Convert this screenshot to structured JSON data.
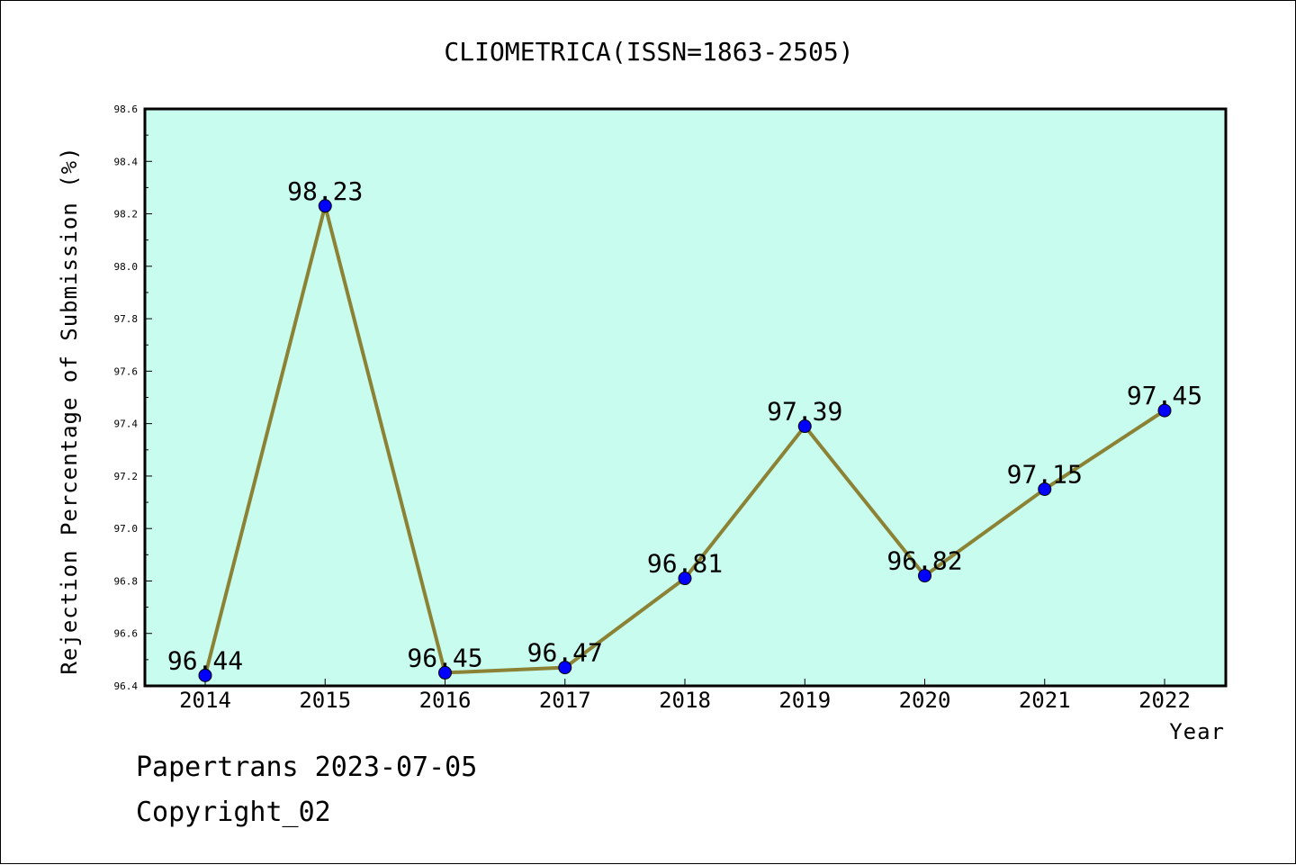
{
  "chart_data": {
    "type": "line",
    "title": "CLIOMETRICA(ISSN=1863-2505)",
    "xlabel": "Year",
    "ylabel": "Rejection Percentage of Submission (%)",
    "categories": [
      "2014",
      "2015",
      "2016",
      "2017",
      "2018",
      "2019",
      "2020",
      "2021",
      "2022"
    ],
    "series": [
      {
        "values": [
          96.44,
          98.23,
          96.45,
          96.47,
          96.81,
          97.39,
          96.82,
          97.15,
          97.45
        ],
        "labels": [
          "96.44",
          "98.23",
          "96.45",
          "96.47",
          "96.81",
          "97.39",
          "96.82",
          "97.15",
          "97.45"
        ]
      }
    ],
    "ylim": [
      96.4,
      98.6
    ],
    "yticks": [
      "96.4",
      "96.6",
      "96.8",
      "97.0",
      "97.2",
      "97.4",
      "97.6",
      "97.8",
      "98.0",
      "98.2",
      "98.4",
      "98.6"
    ],
    "grid": false,
    "colors": {
      "plot_background": "#c8fcee",
      "line": "#8b8235",
      "marker": "#0000ff"
    }
  },
  "footer": {
    "line1": "Papertrans 2023-07-05",
    "line2": "Copyright_02"
  }
}
